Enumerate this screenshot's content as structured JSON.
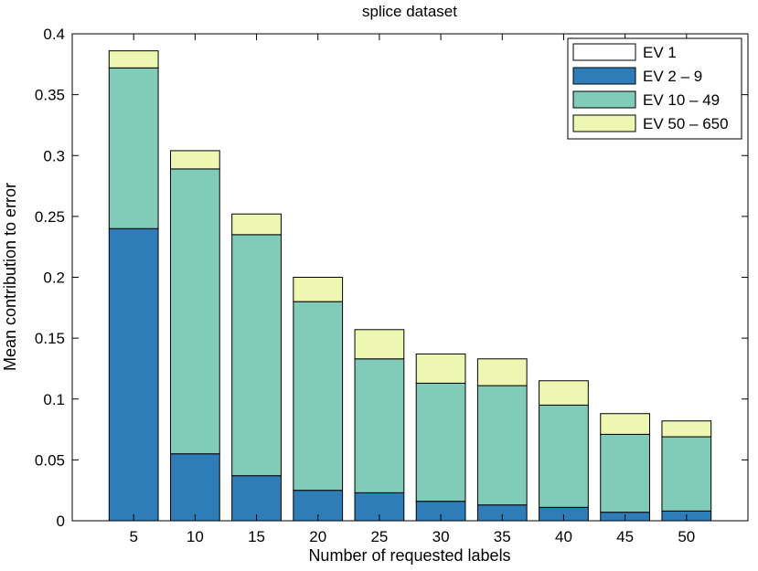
{
  "chart_data": {
    "type": "bar",
    "stacked": true,
    "title": "splice dataset",
    "xlabel": "Number of requested labels",
    "ylabel": "Mean contribution to error",
    "categories": [
      "5",
      "10",
      "15",
      "20",
      "25",
      "30",
      "35",
      "40",
      "45",
      "50"
    ],
    "ylim": [
      0,
      0.4
    ],
    "yticks": [
      "0",
      "0.05",
      "0.1",
      "0.15",
      "0.2",
      "0.25",
      "0.3",
      "0.35",
      "0.4"
    ],
    "grid": false,
    "legend_position": "top-right",
    "series": [
      {
        "name": "EV 1",
        "color": "#ffffff",
        "values": [
          0,
          0,
          0,
          0,
          0,
          0,
          0,
          0,
          0,
          0
        ]
      },
      {
        "name": "EV 2 – 9",
        "color": "#2e7db8",
        "values": [
          0.24,
          0.055,
          0.037,
          0.025,
          0.023,
          0.016,
          0.013,
          0.011,
          0.007,
          0.008
        ]
      },
      {
        "name": "EV 10 – 49",
        "color": "#80ccb9",
        "values": [
          0.132,
          0.234,
          0.198,
          0.155,
          0.11,
          0.097,
          0.098,
          0.084,
          0.064,
          0.061
        ]
      },
      {
        "name": "EV 50 – 650",
        "color": "#eef7b2",
        "values": [
          0.014,
          0.015,
          0.017,
          0.02,
          0.024,
          0.024,
          0.022,
          0.02,
          0.017,
          0.013
        ]
      }
    ]
  }
}
